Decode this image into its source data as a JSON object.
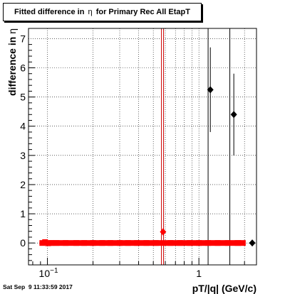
{
  "title": {
    "prefix": "Fitted difference in ",
    "symbol": "η",
    "suffix": " for Primary Rec All EtapT"
  },
  "timestamp": "Sat Sep  9 11:33:59 2017",
  "colors": {
    "points": "#ff0000",
    "markers": "#000000",
    "frame": "#000000",
    "refline": "#cc0000",
    "grid": "#000000"
  },
  "chart_data": {
    "type": "scatter",
    "title": "Fitted difference in η for Primary Rec All EtapT",
    "xlabel": "pT/|q| (GeV/c)",
    "ylabel": {
      "text": "difference in ",
      "symbol": "η"
    },
    "xscale": "log",
    "xlim": [
      0.075,
      2.4
    ],
    "ylim": [
      -0.75,
      7.35
    ],
    "grid": true,
    "x_tick_labels": [
      {
        "value": 0.1,
        "base": "10",
        "exp": "−1"
      },
      {
        "value": 1,
        "label": "1"
      }
    ],
    "y_tick_labels": [
      0,
      1,
      2,
      3,
      4,
      5,
      6,
      7
    ],
    "series": [
      {
        "color": "#ff0000",
        "marker": "square",
        "points": [
          {
            "x": 0.0925,
            "y": 0.0,
            "err": 0.0
          },
          {
            "x": 0.0965,
            "y": 0.03,
            "err": 0.0
          },
          {
            "x": 0.101,
            "y": -0.01,
            "err": 0.0
          },
          {
            "x": 0.106,
            "y": 0.0,
            "err": 0.0
          },
          {
            "x": 0.115,
            "y": 0.0,
            "err": 0.0
          },
          {
            "x": 0.132,
            "y": 0.0,
            "err": 0.0
          },
          {
            "x": 0.155,
            "y": 0.0,
            "err": 0.0
          },
          {
            "x": 0.175,
            "y": 0.0,
            "err": 0.0
          },
          {
            "x": 0.2,
            "y": 0.0,
            "err": 0.0
          },
          {
            "x": 0.23,
            "y": 0.0,
            "err": 0.0
          },
          {
            "x": 0.26,
            "y": 0.0,
            "err": 0.0
          },
          {
            "x": 0.3,
            "y": 0.0,
            "err": 0.0
          },
          {
            "x": 0.34,
            "y": 0.0,
            "err": 0.0
          },
          {
            "x": 0.39,
            "y": 0.0,
            "err": 0.0
          },
          {
            "x": 0.45,
            "y": 0.0,
            "err": 0.0
          },
          {
            "x": 0.52,
            "y": 0.0,
            "err": 0.0
          },
          {
            "x": 0.58,
            "y": 0.38,
            "err": 0.12,
            "marker": "diamond"
          },
          {
            "x": 0.65,
            "y": 0.0,
            "err": 0.0
          },
          {
            "x": 0.75,
            "y": 0.0,
            "err": 0.0
          },
          {
            "x": 0.87,
            "y": 0.0,
            "err": 0.0
          },
          {
            "x": 1.0,
            "y": 0.0,
            "err": 0.0
          },
          {
            "x": 1.15,
            "y": 0.0,
            "err": 0.0
          },
          {
            "x": 1.33,
            "y": 0.0,
            "err": 0.0
          },
          {
            "x": 1.55,
            "y": 0.0,
            "err": 0.0
          },
          {
            "x": 1.8,
            "y": 0.0,
            "err": 0.0
          },
          {
            "x": 1.95,
            "y": 0.0,
            "err": 0.0
          }
        ]
      },
      {
        "color": "#000000",
        "marker": "diamond",
        "points": [
          {
            "x": 1.19,
            "y": 5.25,
            "err": 1.45
          },
          {
            "x": 1.7,
            "y": 4.4,
            "err": 1.4
          },
          {
            "x": 2.25,
            "y": 0.0,
            "err": 0.0
          }
        ]
      }
    ],
    "vertical_lines": [
      {
        "x": 0.575,
        "color": "#cc0000",
        "style": "double"
      },
      {
        "x": 1.15,
        "color": "#000000"
      },
      {
        "x": 1.6,
        "color": "#000000"
      }
    ]
  }
}
